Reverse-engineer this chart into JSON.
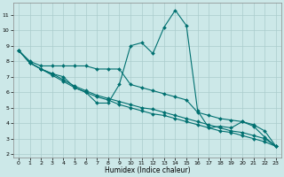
{
  "xlabel": "Humidex (Indice chaleur)",
  "ylabel": "",
  "background_color": "#cce8e8",
  "grid_color": "#aacccc",
  "line_color": "#007070",
  "xlim": [
    -0.5,
    23.5
  ],
  "ylim": [
    1.8,
    11.8
  ],
  "yticks": [
    2,
    3,
    4,
    5,
    6,
    7,
    8,
    9,
    10,
    11
  ],
  "xticks": [
    0,
    1,
    2,
    3,
    4,
    5,
    6,
    7,
    8,
    9,
    10,
    11,
    12,
    13,
    14,
    15,
    16,
    17,
    18,
    19,
    20,
    21,
    22,
    23
  ],
  "line1_x": [
    0,
    1,
    2,
    3,
    4,
    5,
    6,
    7,
    8,
    9,
    10,
    11,
    12,
    13,
    14,
    15,
    16,
    17,
    18,
    19,
    20,
    21,
    22,
    23
  ],
  "line1_y": [
    8.7,
    8.0,
    7.7,
    7.7,
    7.7,
    7.7,
    7.7,
    7.5,
    7.5,
    7.5,
    6.5,
    6.3,
    6.1,
    5.9,
    5.7,
    5.5,
    4.7,
    4.5,
    4.3,
    4.2,
    4.1,
    3.9,
    3.5,
    2.5
  ],
  "line2_x": [
    0,
    1,
    2,
    3,
    4,
    5,
    6,
    7,
    8,
    9,
    10,
    11,
    12,
    13,
    14,
    15,
    16,
    17,
    18,
    19,
    20,
    21,
    22,
    23
  ],
  "line2_y": [
    8.7,
    7.9,
    7.5,
    7.2,
    6.8,
    6.4,
    6.1,
    5.8,
    5.6,
    5.4,
    5.2,
    5.0,
    4.9,
    4.7,
    4.5,
    4.3,
    4.1,
    3.9,
    3.7,
    3.5,
    3.4,
    3.2,
    3.0,
    2.5
  ],
  "line3_x": [
    0,
    1,
    2,
    3,
    4,
    5,
    6,
    7,
    8,
    9,
    10,
    11,
    12,
    13,
    14,
    15,
    16,
    17,
    18,
    19,
    20,
    21,
    22,
    23
  ],
  "line3_y": [
    8.7,
    7.9,
    7.5,
    7.1,
    6.7,
    6.3,
    6.0,
    5.7,
    5.5,
    5.2,
    5.0,
    4.8,
    4.6,
    4.5,
    4.3,
    4.1,
    3.9,
    3.7,
    3.5,
    3.4,
    3.2,
    3.0,
    2.8,
    2.5
  ],
  "line4_x": [
    0,
    1,
    2,
    3,
    4,
    5,
    6,
    7,
    8,
    9,
    10,
    11,
    12,
    13,
    14,
    15,
    16,
    17,
    18,
    19,
    20,
    21,
    22,
    23
  ],
  "line4_y": [
    8.7,
    7.9,
    7.5,
    7.2,
    7.0,
    6.3,
    6.0,
    5.3,
    5.3,
    6.5,
    9.0,
    9.2,
    8.5,
    10.2,
    11.3,
    10.3,
    4.8,
    3.7,
    3.8,
    3.7,
    4.1,
    3.8,
    3.1,
    2.5
  ]
}
